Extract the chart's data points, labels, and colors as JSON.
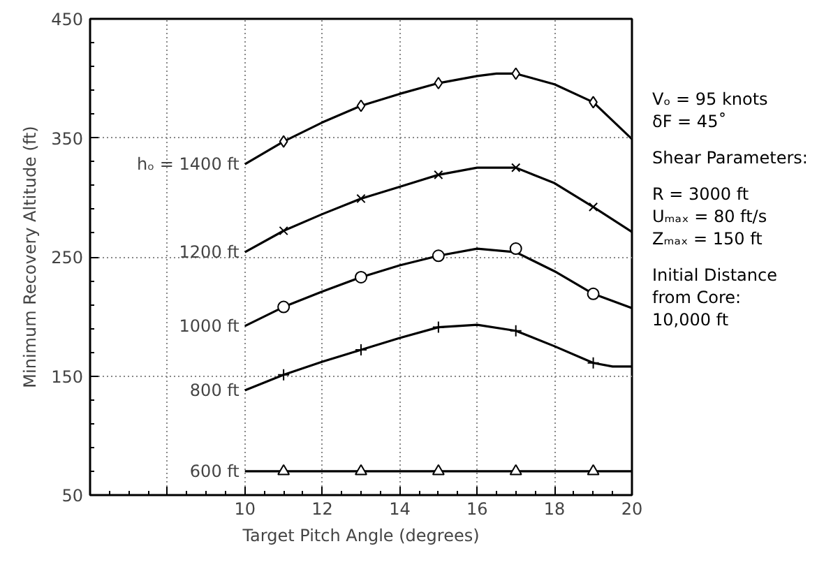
{
  "chart_data": {
    "type": "line",
    "xlabel": "Target Pitch Angle (degrees)",
    "ylabel": "Minimum Recovery Altitude (ft)",
    "xlim": [
      6,
      20
    ],
    "ylim": [
      50,
      450
    ],
    "xticks": [
      {
        "value": 8,
        "label": null
      },
      10,
      12,
      14,
      16,
      18,
      20
    ],
    "yticks": [
      50,
      150,
      250,
      350,
      450
    ],
    "grid": true,
    "line_style": "solid",
    "series": [
      {
        "name": "hₒ = 1400 ft",
        "color": "#000000",
        "x": [
          10,
          11,
          12,
          13,
          14,
          15,
          16,
          16.5,
          17,
          18,
          19,
          20
        ],
        "values": [
          328,
          347,
          363,
          377,
          387,
          396,
          402,
          404,
          404,
          395,
          380,
          349
        ]
      },
      {
        "name": "1200 ft",
        "color": "#000000",
        "x": [
          10,
          11,
          12,
          13,
          14,
          15,
          16,
          17,
          18,
          19,
          20
        ],
        "values": [
          254,
          272,
          286,
          299,
          309,
          319,
          325,
          325,
          312,
          292,
          271
        ]
      },
      {
        "name": "1000 ft",
        "color": "#000000",
        "x": [
          10,
          11,
          12,
          13,
          14,
          15,
          16,
          17,
          18,
          19,
          20
        ],
        "values": [
          192,
          208,
          221,
          233,
          243,
          251,
          257,
          254,
          238,
          219,
          207
        ]
      },
      {
        "name": "800 ft",
        "color": "#000000",
        "x": [
          10,
          11,
          12,
          13,
          14,
          15,
          16,
          17,
          18,
          19,
          19.5,
          20
        ],
        "values": [
          138,
          151,
          162,
          172,
          182,
          191,
          193,
          188,
          175,
          161,
          158,
          158
        ]
      },
      {
        "name": "600 ft",
        "color": "#000000",
        "x": [
          10,
          20
        ],
        "values": [
          70,
          70
        ]
      },
      {
        "type": "scatter",
        "marker": "diamond",
        "color": "#000000",
        "x": [
          11,
          13,
          15,
          17,
          19
        ],
        "values": [
          347,
          377,
          396,
          404,
          380
        ]
      },
      {
        "type": "scatter",
        "marker": "x",
        "color": "#000000",
        "x": [
          11,
          13,
          15,
          17,
          19
        ],
        "values": [
          272,
          299,
          319,
          325,
          292
        ]
      },
      {
        "type": "scatter",
        "marker": "circle",
        "color": "#000000",
        "x": [
          11,
          13,
          15,
          17,
          19
        ],
        "values": [
          208,
          233,
          251,
          257,
          219
        ]
      },
      {
        "type": "scatter",
        "marker": "cross",
        "color": "#000000",
        "x": [
          11,
          13,
          15,
          17,
          19
        ],
        "values": [
          151,
          172,
          191,
          188,
          161
        ]
      },
      {
        "type": "scatter",
        "marker": "triangle",
        "color": "#000000",
        "x": [
          11,
          13,
          15,
          17,
          19
        ],
        "values": [
          70,
          70,
          70,
          70,
          70
        ]
      }
    ],
    "annotations": [
      "Vₒ = 95 knots",
      "δF = 45˚",
      "Shear Parameters:",
      "R = 3000 ft",
      "Uₘₐₓ = 80 ft/s",
      "Zₘₐₓ = 150 ft",
      "Initial  Distance",
      "from Core:",
      "10,000 ft"
    ]
  }
}
